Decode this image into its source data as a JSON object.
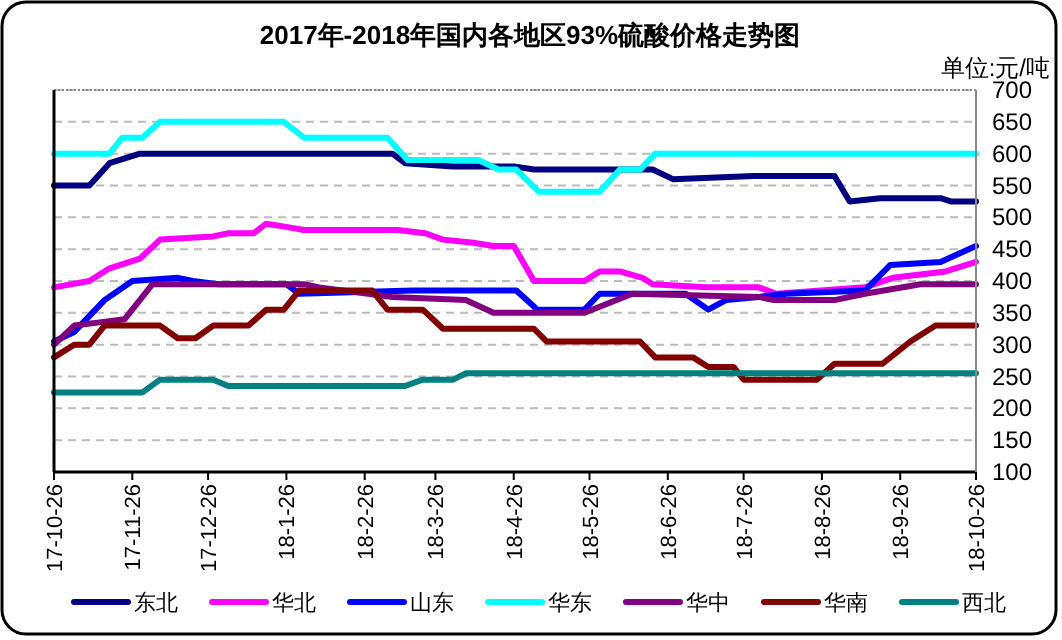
{
  "chart_data": {
    "type": "line",
    "title": "2017年-2018年国内各地区93%硫酸价格走势图",
    "ylabel": "单位:元/吨",
    "xlim": [
      "2017-10-26",
      "2018-10-26"
    ],
    "xticks": [
      {
        "value": "2017-10-26",
        "label": "17-10-26"
      },
      {
        "value": "2017-11-26",
        "label": "17-11-26"
      },
      {
        "value": "2017-12-26",
        "label": "17-12-26"
      },
      {
        "value": "2018-01-26",
        "label": "18-1-26"
      },
      {
        "value": "2018-02-26",
        "label": "18-2-26"
      },
      {
        "value": "2018-03-26",
        "label": "18-3-26"
      },
      {
        "value": "2018-04-26",
        "label": "18-4-26"
      },
      {
        "value": "2018-05-26",
        "label": "18-5-26"
      },
      {
        "value": "2018-06-26",
        "label": "18-6-26"
      },
      {
        "value": "2018-07-26",
        "label": "18-7-26"
      },
      {
        "value": "2018-08-26",
        "label": "18-8-26"
      },
      {
        "value": "2018-09-26",
        "label": "18-9-26"
      },
      {
        "value": "2018-10-26",
        "label": "18-10-26"
      }
    ],
    "ylim": [
      100,
      700
    ],
    "yticks": [
      100,
      150,
      200,
      250,
      300,
      350,
      400,
      450,
      500,
      550,
      600,
      650,
      700
    ],
    "grid": "y",
    "legend": "bottom",
    "marker": "none",
    "line_style": "solid",
    "series": [
      {
        "name": "东北",
        "color": "#000080",
        "x": [
          "2017-10-26",
          "2017-11-09",
          "2017-11-17",
          "2017-11-29",
          "2018-03-09",
          "2018-03-14",
          "2018-04-02",
          "2018-04-26",
          "2018-05-04",
          "2018-06-20",
          "2018-06-28",
          "2018-07-30",
          "2018-08-31",
          "2018-09-06",
          "2018-09-18",
          "2018-10-12",
          "2018-10-16",
          "2018-10-26"
        ],
        "values": [
          550,
          550,
          585,
          600,
          600,
          585,
          580,
          580,
          575,
          575,
          560,
          565,
          565,
          525,
          530,
          530,
          525,
          525
        ]
      },
      {
        "name": "华北",
        "color": "#ff00ff",
        "x": [
          "2017-10-26",
          "2017-11-09",
          "2017-11-17",
          "2017-11-29",
          "2017-12-07",
          "2017-12-28",
          "2018-01-03",
          "2018-01-13",
          "2018-01-18",
          "2018-01-26",
          "2018-02-02",
          "2018-03-11",
          "2018-03-22",
          "2018-03-29",
          "2018-04-10",
          "2018-04-18",
          "2018-04-26",
          "2018-05-04",
          "2018-05-24",
          "2018-05-30",
          "2018-06-07",
          "2018-06-16",
          "2018-06-20",
          "2018-07-11",
          "2018-08-01",
          "2018-08-08",
          "2018-09-12",
          "2018-09-23",
          "2018-10-14",
          "2018-10-26"
        ],
        "values": [
          390,
          400,
          420,
          435,
          465,
          470,
          475,
          475,
          490,
          485,
          480,
          480,
          475,
          465,
          460,
          455,
          455,
          400,
          400,
          415,
          415,
          405,
          395,
          390,
          390,
          380,
          390,
          405,
          415,
          430
        ]
      },
      {
        "name": "山东",
        "color": "#0000ff",
        "x": [
          "2017-10-26",
          "2017-11-03",
          "2017-11-15",
          "2017-11-26",
          "2017-12-14",
          "2017-12-20",
          "2017-12-30",
          "2018-01-26",
          "2018-01-31",
          "2018-03-17",
          "2018-04-27",
          "2018-05-04",
          "2018-05-05",
          "2018-05-24",
          "2018-05-30",
          "2018-07-03",
          "2018-07-12",
          "2018-07-19",
          "2018-08-01",
          "2018-08-12",
          "2018-09-12",
          "2018-09-22",
          "2018-10-12",
          "2018-10-26"
        ],
        "values": [
          305,
          320,
          370,
          400,
          405,
          400,
          395,
          395,
          380,
          385,
          385,
          360,
          355,
          355,
          380,
          380,
          355,
          370,
          375,
          380,
          385,
          425,
          430,
          455
        ]
      },
      {
        "name": "华东",
        "color": "#00ffff",
        "x": [
          "2017-10-26",
          "2017-11-17",
          "2017-11-22",
          "2017-11-30",
          "2017-12-07",
          "2018-01-25",
          "2018-02-02",
          "2018-03-07",
          "2018-03-15",
          "2018-04-12",
          "2018-04-20",
          "2018-04-27",
          "2018-05-06",
          "2018-05-30",
          "2018-06-07",
          "2018-06-15",
          "2018-06-21",
          "2018-10-26"
        ],
        "values": [
          600,
          600,
          625,
          625,
          650,
          650,
          625,
          625,
          590,
          590,
          575,
          575,
          540,
          540,
          575,
          575,
          600,
          600
        ]
      },
      {
        "name": "华中",
        "color": "#800080",
        "x": [
          "2017-10-26",
          "2017-11-03",
          "2017-11-13",
          "2017-11-23",
          "2017-12-04",
          "2018-02-02",
          "2018-02-08",
          "2018-03-09",
          "2018-04-07",
          "2018-04-18",
          "2018-05-24",
          "2018-06-12",
          "2018-08-01",
          "2018-08-07",
          "2018-08-31",
          "2018-09-12",
          "2018-10-04",
          "2018-10-26"
        ],
        "values": [
          300,
          330,
          335,
          340,
          395,
          395,
          390,
          375,
          370,
          350,
          350,
          380,
          375,
          370,
          370,
          380,
          395,
          395
        ]
      },
      {
        "name": "华南",
        "color": "#800000",
        "x": [
          "2017-10-26",
          "2017-11-03",
          "2017-11-09",
          "2017-11-15",
          "2017-12-07",
          "2017-12-14",
          "2017-12-21",
          "2017-12-28",
          "2018-01-11",
          "2018-01-18",
          "2018-01-25",
          "2018-01-31",
          "2018-03-01",
          "2018-03-07",
          "2018-03-21",
          "2018-03-29",
          "2018-05-04",
          "2018-05-09",
          "2018-06-15",
          "2018-06-21",
          "2018-07-06",
          "2018-07-12",
          "2018-07-22",
          "2018-07-26",
          "2018-08-24",
          "2018-08-31",
          "2018-09-19",
          "2018-09-30",
          "2018-10-10",
          "2018-10-26"
        ],
        "values": [
          280,
          300,
          300,
          330,
          330,
          310,
          310,
          330,
          330,
          355,
          355,
          385,
          385,
          355,
          355,
          325,
          325,
          305,
          305,
          280,
          280,
          265,
          265,
          245,
          245,
          270,
          270,
          305,
          330,
          330
        ]
      },
      {
        "name": "西北",
        "color": "#008080",
        "x": [
          "2017-10-26",
          "2017-11-30",
          "2017-12-07",
          "2017-12-28",
          "2018-01-03",
          "2018-03-14",
          "2018-03-21",
          "2018-04-02",
          "2018-04-07",
          "2018-10-26"
        ],
        "values": [
          225,
          225,
          245,
          245,
          235,
          235,
          245,
          245,
          255,
          255
        ]
      }
    ]
  }
}
